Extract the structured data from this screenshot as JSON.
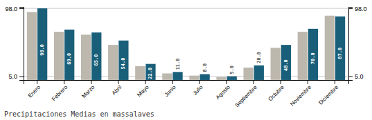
{
  "chart_data": {
    "type": "bar",
    "title": "Precipitaciones Medias en massalaves",
    "categories": [
      "Enero",
      "Febrero",
      "Marzo",
      "Abril",
      "Mayo",
      "Junio",
      "Julio",
      "Agosto",
      "Septiembre",
      "Octubre",
      "Noviembre",
      "Diciembre"
    ],
    "series": [
      {
        "color": "#bdb8ae",
        "values": [
          93,
          66,
          62,
          48,
          19,
          9,
          6,
          4,
          17,
          44,
          66,
          88
        ]
      },
      {
        "color": "#1a5f7a",
        "values": [
          98,
          69,
          65,
          54,
          22,
          11,
          8,
          5,
          20,
          48,
          70,
          87
        ],
        "value_labels": [
          "98.0",
          "69.0",
          "65.0",
          "54.0",
          "22.0",
          "11.0",
          "8.0",
          "5.0",
          "20.0",
          "48.0",
          "70.0",
          "87.0"
        ]
      }
    ],
    "ylim": [
      0,
      100
    ],
    "yticks": [
      {
        "value": 5,
        "label": "5.0"
      },
      {
        "value": 98,
        "label": "98.0"
      }
    ],
    "y2lim": [
      0,
      100
    ],
    "y2ticks": [
      {
        "value": 5,
        "label": "5.0"
      },
      {
        "value": 98,
        "label": "98.0"
      }
    ],
    "grid": true,
    "data_labels": true
  }
}
